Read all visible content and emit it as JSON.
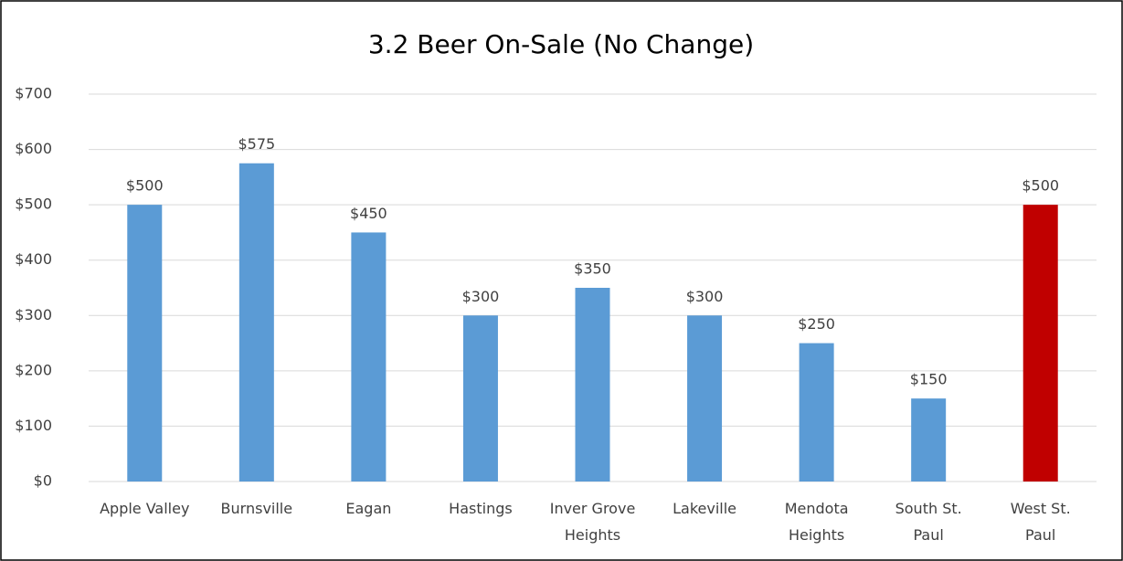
{
  "chart_data": {
    "type": "bar",
    "title": "3.2 Beer On-Sale (No Change)",
    "categories": [
      "Apple Valley",
      "Burnsville",
      "Eagan",
      "Hastings",
      "Inver Grove\nHeights",
      "Lakeville",
      "Mendota\nHeights",
      "South St.\nPaul",
      "West St.\nPaul"
    ],
    "values": [
      500,
      575,
      450,
      300,
      350,
      300,
      250,
      150,
      500
    ],
    "value_labels": [
      "$500",
      "$575",
      "$450",
      "$300",
      "$350",
      "$300",
      "$250",
      "$150",
      "$500"
    ],
    "colors": [
      "#5b9bd5",
      "#5b9bd5",
      "#5b9bd5",
      "#5b9bd5",
      "#5b9bd5",
      "#5b9bd5",
      "#5b9bd5",
      "#5b9bd5",
      "#c00000"
    ],
    "ylim": [
      0,
      700
    ],
    "yticks": [
      {
        "value": 0,
        "label": "$0"
      },
      {
        "value": 100,
        "label": "$100"
      },
      {
        "value": 200,
        "label": "$200"
      },
      {
        "value": 300,
        "label": "$300"
      },
      {
        "value": 400,
        "label": "$400"
      },
      {
        "value": 500,
        "label": "$500"
      },
      {
        "value": 600,
        "label": "$600"
      },
      {
        "value": 700,
        "label": "$700"
      }
    ],
    "grid": true
  }
}
